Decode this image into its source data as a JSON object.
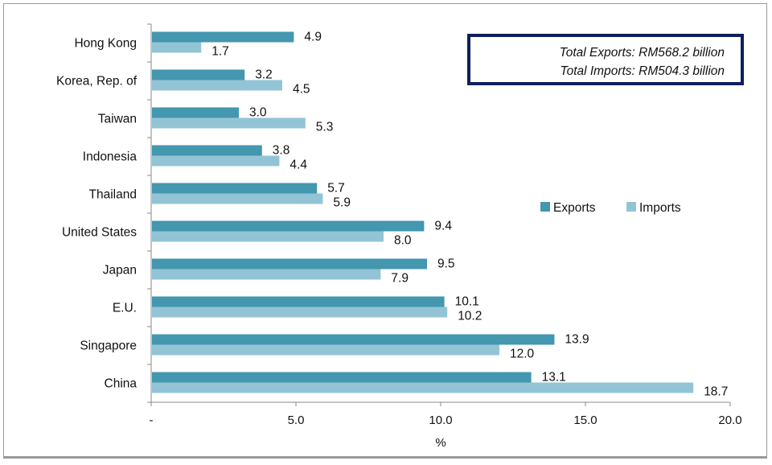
{
  "chart_data": {
    "type": "bar",
    "orientation": "horizontal",
    "categories": [
      "Hong Kong",
      "Korea, Rep. of",
      "Taiwan",
      "Indonesia",
      "Thailand",
      "United States",
      "Japan",
      "E.U.",
      "Singapore",
      "China"
    ],
    "series": [
      {
        "name": "Exports",
        "color": "#4397ae",
        "values": [
          4.9,
          3.2,
          3.0,
          3.8,
          5.7,
          9.4,
          9.5,
          10.1,
          13.9,
          13.1
        ],
        "labels": [
          "4.9",
          "3.2",
          "3.0",
          "3.8",
          "5.7",
          "9.4",
          "9.5",
          "10.1",
          "13.9",
          "13.1"
        ]
      },
      {
        "name": "Imports",
        "color": "#93c4d6",
        "values": [
          1.7,
          4.5,
          5.3,
          4.4,
          5.9,
          8.0,
          7.9,
          10.2,
          12.0,
          18.7
        ],
        "labels": [
          "1.7",
          "4.5",
          "5.3",
          "4.4",
          "5.9",
          "8.0",
          "7.9",
          "10.2",
          "12.0",
          "18.7"
        ]
      }
    ],
    "xlabel": "%",
    "xlim": [
      0,
      20
    ],
    "xticks": [
      0,
      5,
      10,
      15,
      20
    ],
    "xtick_labels": [
      "-",
      "5.0",
      "10.0",
      "15.0",
      "20.0"
    ],
    "grid": false,
    "legend_position": "right"
  },
  "annotation": {
    "total_exports": "Total Exports: RM568.2 billion",
    "total_imports": "Total Imports: RM504.3 billion",
    "border_color": "#0e1f5b"
  }
}
